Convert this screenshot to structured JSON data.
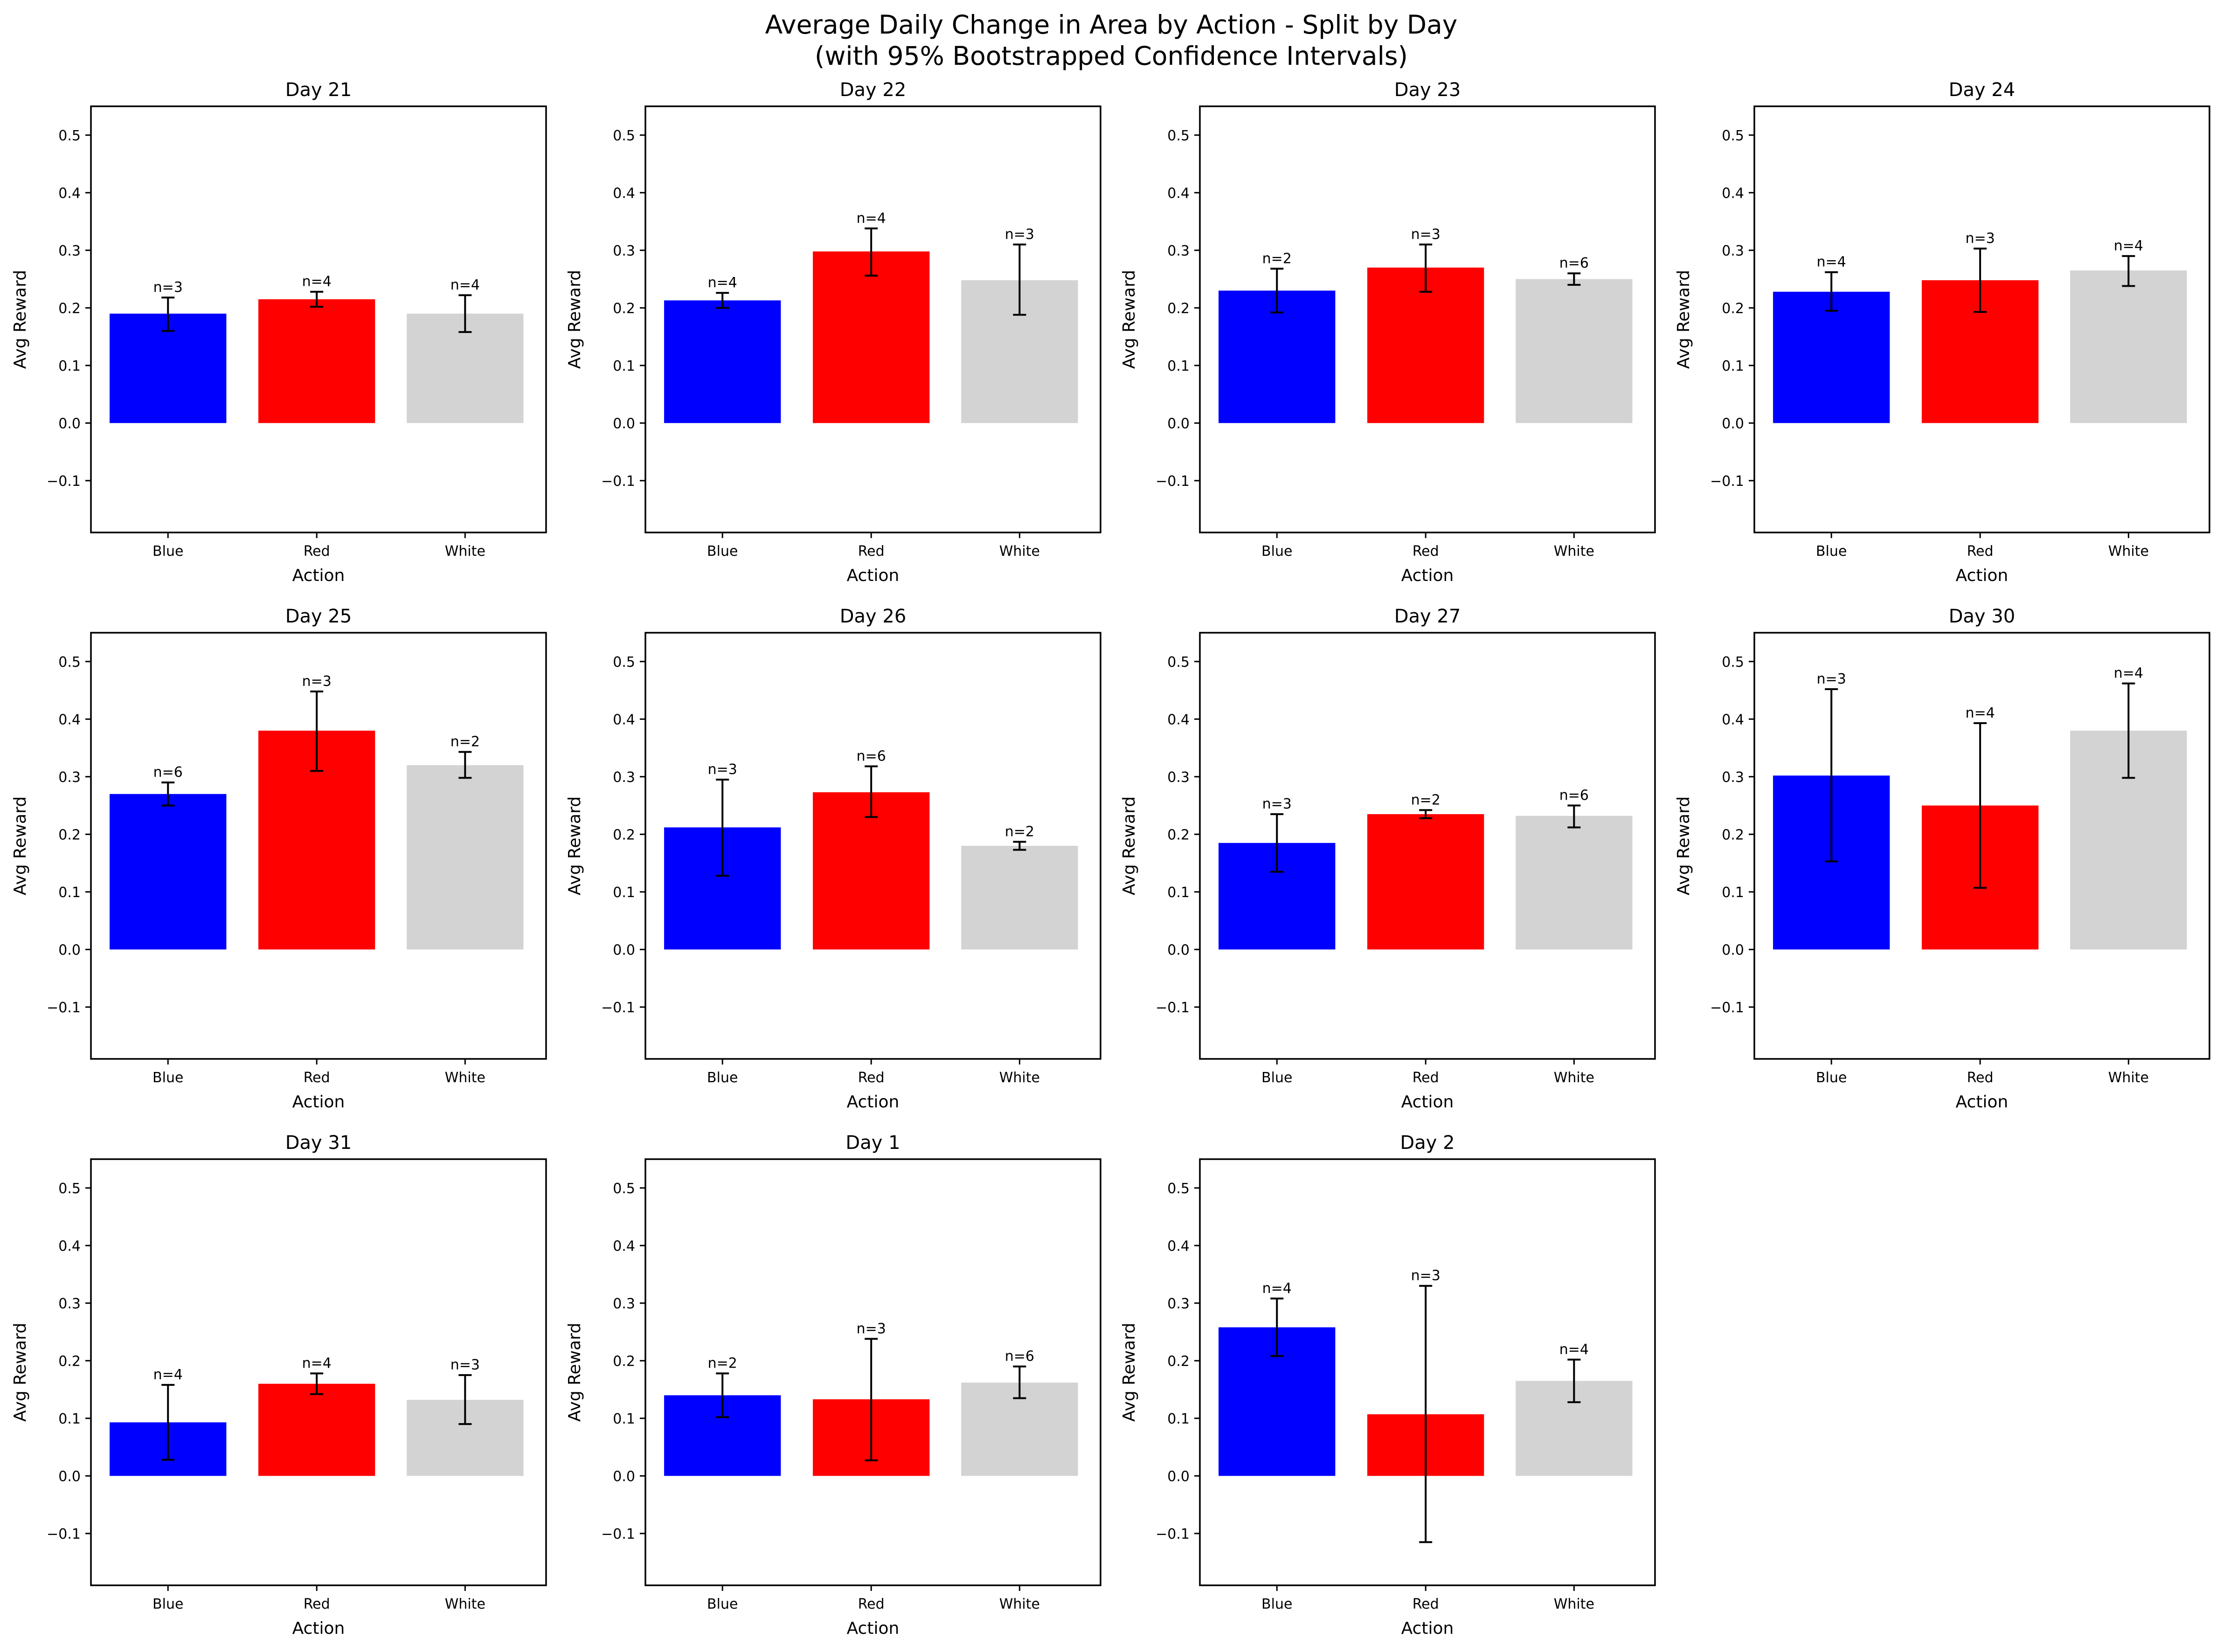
{
  "figure": {
    "title_line1": "Average Daily Change in Area by Action - Split by Day",
    "title_line2": "(with 95% Bootstrapped Confidence Intervals)"
  },
  "colors": {
    "Blue": "#0000ff",
    "Red": "#ff0000",
    "White": "#d3d3d3",
    "axes": "#000000"
  },
  "chart_data": [
    {
      "type": "bar",
      "title": "Day 21",
      "xlabel": "Action",
      "ylabel": "Avg Reward",
      "categories": [
        "Blue",
        "Red",
        "White"
      ],
      "values": [
        0.19,
        0.215,
        0.19
      ],
      "ci": [
        [
          0.16,
          0.218
        ],
        [
          0.202,
          0.228
        ],
        [
          0.158,
          0.222
        ]
      ],
      "n": [
        "n=3",
        "n=4",
        "n=4"
      ],
      "ylim": [
        -0.19,
        0.55
      ],
      "yticks": [
        -0.1,
        0.0,
        0.1,
        0.2,
        0.3,
        0.4,
        0.5
      ]
    },
    {
      "type": "bar",
      "title": "Day 22",
      "xlabel": "Action",
      "ylabel": "Avg Reward",
      "categories": [
        "Blue",
        "Red",
        "White"
      ],
      "values": [
        0.213,
        0.298,
        0.248
      ],
      "ci": [
        [
          0.2,
          0.226
        ],
        [
          0.256,
          0.338
        ],
        [
          0.188,
          0.31
        ]
      ],
      "n": [
        "n=4",
        "n=4",
        "n=3"
      ],
      "ylim": [
        -0.19,
        0.55
      ],
      "yticks": [
        -0.1,
        0.0,
        0.1,
        0.2,
        0.3,
        0.4,
        0.5
      ]
    },
    {
      "type": "bar",
      "title": "Day 23",
      "xlabel": "Action",
      "ylabel": "Avg Reward",
      "categories": [
        "Blue",
        "Red",
        "White"
      ],
      "values": [
        0.23,
        0.27,
        0.25
      ],
      "ci": [
        [
          0.192,
          0.268
        ],
        [
          0.228,
          0.31
        ],
        [
          0.24,
          0.26
        ]
      ],
      "n": [
        "n=2",
        "n=3",
        "n=6"
      ],
      "ylim": [
        -0.19,
        0.55
      ],
      "yticks": [
        -0.1,
        0.0,
        0.1,
        0.2,
        0.3,
        0.4,
        0.5
      ]
    },
    {
      "type": "bar",
      "title": "Day 24",
      "xlabel": "Action",
      "ylabel": "Avg Reward",
      "categories": [
        "Blue",
        "Red",
        "White"
      ],
      "values": [
        0.228,
        0.248,
        0.265
      ],
      "ci": [
        [
          0.195,
          0.262
        ],
        [
          0.193,
          0.303
        ],
        [
          0.238,
          0.29
        ]
      ],
      "n": [
        "n=4",
        "n=3",
        "n=4"
      ],
      "ylim": [
        -0.19,
        0.55
      ],
      "yticks": [
        -0.1,
        0.0,
        0.1,
        0.2,
        0.3,
        0.4,
        0.5
      ]
    },
    {
      "type": "bar",
      "title": "Day 25",
      "xlabel": "Action",
      "ylabel": "Avg Reward",
      "categories": [
        "Blue",
        "Red",
        "White"
      ],
      "values": [
        0.27,
        0.38,
        0.32
      ],
      "ci": [
        [
          0.25,
          0.29
        ],
        [
          0.31,
          0.448
        ],
        [
          0.298,
          0.343
        ]
      ],
      "n": [
        "n=6",
        "n=3",
        "n=2"
      ],
      "ylim": [
        -0.19,
        0.55
      ],
      "yticks": [
        -0.1,
        0.0,
        0.1,
        0.2,
        0.3,
        0.4,
        0.5
      ]
    },
    {
      "type": "bar",
      "title": "Day 26",
      "xlabel": "Action",
      "ylabel": "Avg Reward",
      "categories": [
        "Blue",
        "Red",
        "White"
      ],
      "values": [
        0.212,
        0.273,
        0.18
      ],
      "ci": [
        [
          0.128,
          0.295
        ],
        [
          0.23,
          0.318
        ],
        [
          0.173,
          0.187
        ]
      ],
      "n": [
        "n=3",
        "n=6",
        "n=2"
      ],
      "ylim": [
        -0.19,
        0.55
      ],
      "yticks": [
        -0.1,
        0.0,
        0.1,
        0.2,
        0.3,
        0.4,
        0.5
      ]
    },
    {
      "type": "bar",
      "title": "Day 27",
      "xlabel": "Action",
      "ylabel": "Avg Reward",
      "categories": [
        "Blue",
        "Red",
        "White"
      ],
      "values": [
        0.185,
        0.235,
        0.232
      ],
      "ci": [
        [
          0.135,
          0.235
        ],
        [
          0.228,
          0.242
        ],
        [
          0.212,
          0.25
        ]
      ],
      "n": [
        "n=3",
        "n=2",
        "n=6"
      ],
      "ylim": [
        -0.19,
        0.55
      ],
      "yticks": [
        -0.1,
        0.0,
        0.1,
        0.2,
        0.3,
        0.4,
        0.5
      ]
    },
    {
      "type": "bar",
      "title": "Day 30",
      "xlabel": "Action",
      "ylabel": "Avg Reward",
      "categories": [
        "Blue",
        "Red",
        "White"
      ],
      "values": [
        0.302,
        0.25,
        0.38
      ],
      "ci": [
        [
          0.153,
          0.452
        ],
        [
          0.107,
          0.393
        ],
        [
          0.298,
          0.462
        ]
      ],
      "n": [
        "n=3",
        "n=4",
        "n=4"
      ],
      "ylim": [
        -0.19,
        0.55
      ],
      "yticks": [
        -0.1,
        0.0,
        0.1,
        0.2,
        0.3,
        0.4,
        0.5
      ]
    },
    {
      "type": "bar",
      "title": "Day 31",
      "xlabel": "Action",
      "ylabel": "Avg Reward",
      "categories": [
        "Blue",
        "Red",
        "White"
      ],
      "values": [
        0.093,
        0.16,
        0.132
      ],
      "ci": [
        [
          0.028,
          0.158
        ],
        [
          0.142,
          0.178
        ],
        [
          0.09,
          0.175
        ]
      ],
      "n": [
        "n=4",
        "n=4",
        "n=3"
      ],
      "ylim": [
        -0.19,
        0.55
      ],
      "yticks": [
        -0.1,
        0.0,
        0.1,
        0.2,
        0.3,
        0.4,
        0.5
      ]
    },
    {
      "type": "bar",
      "title": "Day 1",
      "xlabel": "Action",
      "ylabel": "Avg Reward",
      "categories": [
        "Blue",
        "Red",
        "White"
      ],
      "values": [
        0.14,
        0.133,
        0.162
      ],
      "ci": [
        [
          0.102,
          0.178
        ],
        [
          0.027,
          0.238
        ],
        [
          0.135,
          0.19
        ]
      ],
      "n": [
        "n=2",
        "n=3",
        "n=6"
      ],
      "ylim": [
        -0.19,
        0.55
      ],
      "yticks": [
        -0.1,
        0.0,
        0.1,
        0.2,
        0.3,
        0.4,
        0.5
      ]
    },
    {
      "type": "bar",
      "title": "Day 2",
      "xlabel": "Action",
      "ylabel": "Avg Reward",
      "categories": [
        "Blue",
        "Red",
        "White"
      ],
      "values": [
        0.258,
        0.107,
        0.165
      ],
      "ci": [
        [
          0.208,
          0.308
        ],
        [
          -0.115,
          0.33
        ],
        [
          0.128,
          0.202
        ]
      ],
      "n": [
        "n=4",
        "n=3",
        "n=4"
      ],
      "ylim": [
        -0.19,
        0.55
      ],
      "yticks": [
        -0.1,
        0.0,
        0.1,
        0.2,
        0.3,
        0.4,
        0.5
      ]
    }
  ]
}
